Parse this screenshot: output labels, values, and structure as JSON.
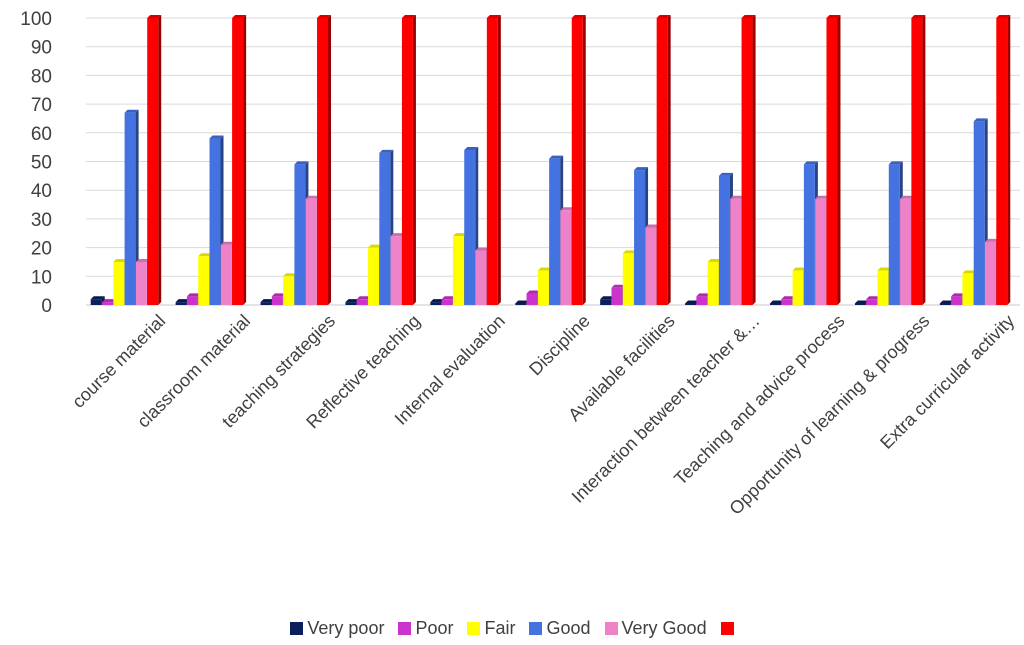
{
  "chart_data": {
    "type": "bar",
    "categories": [
      "course material",
      "classroom material",
      "teaching strategies",
      "Reflective teaching",
      "Internal evaluation",
      "Discipline",
      "Available facilities",
      "Interaction between teacher &…",
      "Teaching and advice process",
      "Opportunity of learning & progress",
      "Extra curricular activity"
    ],
    "series": [
      {
        "name": "Very poor",
        "color": "#0b1f5c",
        "values": [
          2,
          1,
          1,
          1,
          1,
          0,
          2,
          0,
          0,
          0,
          0
        ]
      },
      {
        "name": "Poor",
        "color": "#cc33cc",
        "values": [
          1,
          3,
          3,
          2,
          2,
          4,
          6,
          3,
          2,
          2,
          3
        ]
      },
      {
        "name": "Fair",
        "color": "#ffff00",
        "values": [
          15,
          17,
          10,
          20,
          24,
          12,
          18,
          15,
          12,
          12,
          11
        ]
      },
      {
        "name": "Good",
        "color": "#4472e0",
        "values": [
          67,
          58,
          49,
          53,
          54,
          51,
          47,
          45,
          49,
          49,
          64
        ]
      },
      {
        "name": "Very Good",
        "color": "#ee82c8",
        "values": [
          15,
          21,
          37,
          24,
          19,
          33,
          27,
          37,
          37,
          37,
          22
        ]
      },
      {
        "name": "",
        "color": "#ff0000",
        "values": [
          100,
          100,
          100,
          100,
          100,
          100,
          100,
          100,
          100,
          100,
          100
        ]
      }
    ],
    "y_ticks": [
      "0",
      "10",
      "20",
      "30",
      "40",
      "50",
      "60",
      "70",
      "80",
      "90",
      "100"
    ],
    "ylim": [
      0,
      100
    ],
    "grid": true,
    "legend_position": "bottom",
    "title": "",
    "xlabel": "",
    "ylabel": ""
  }
}
